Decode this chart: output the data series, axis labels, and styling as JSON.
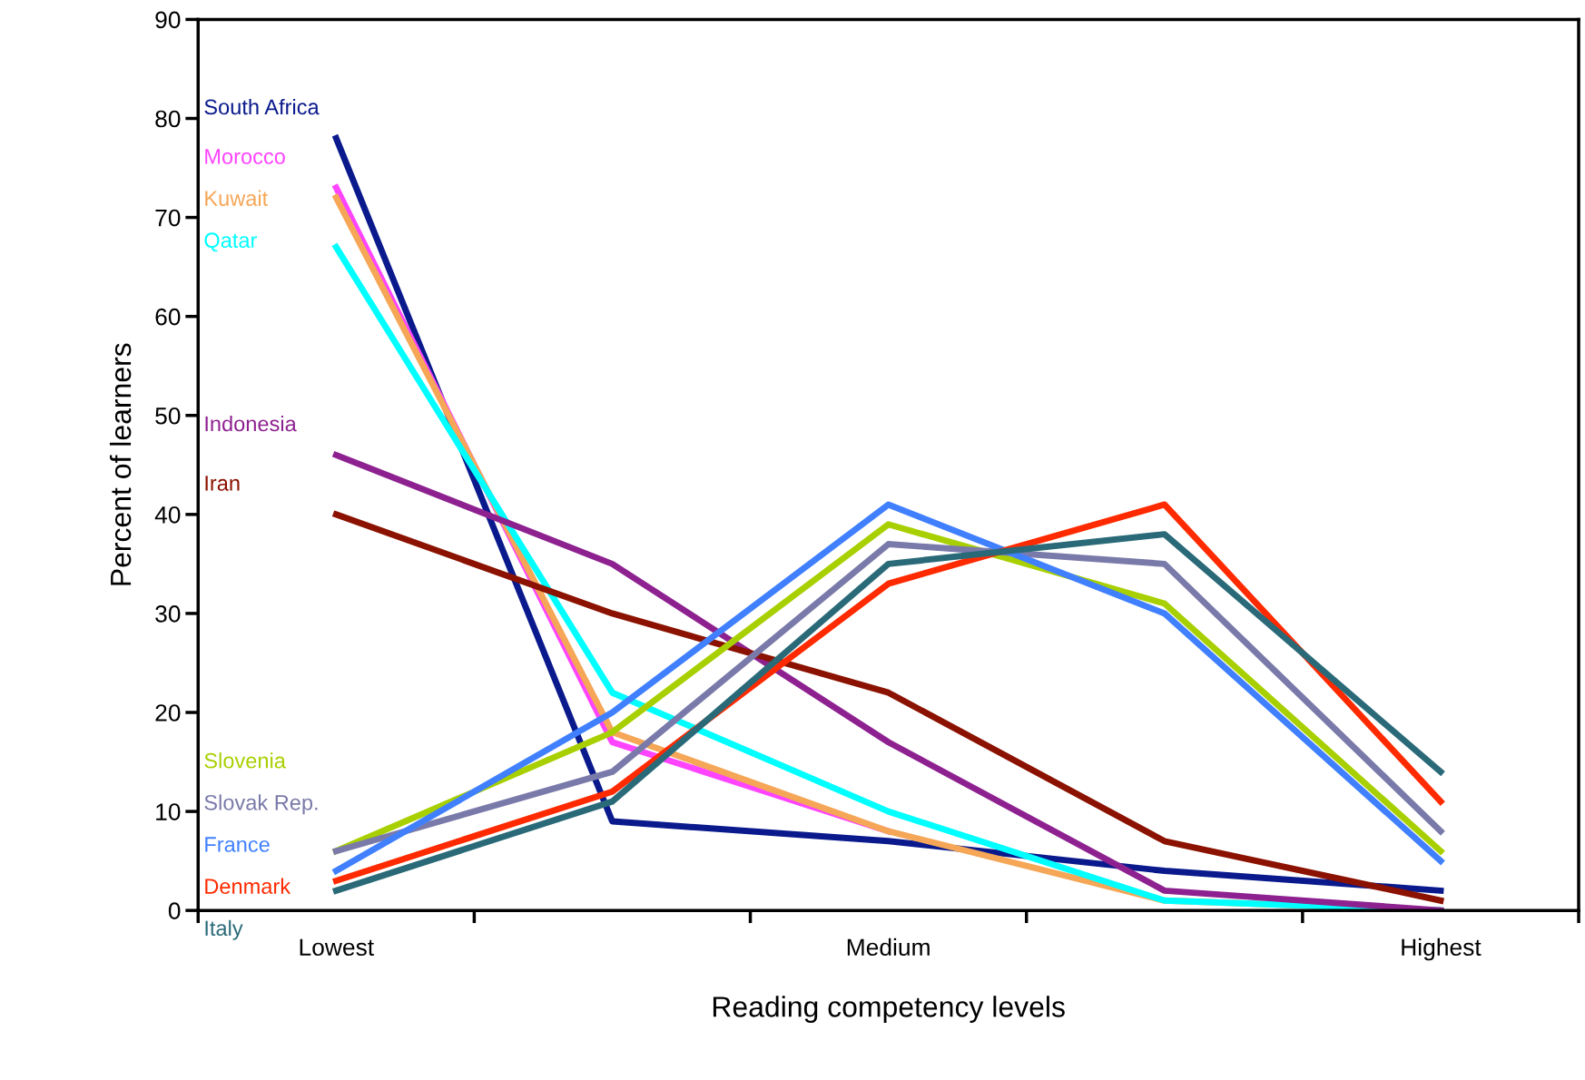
{
  "chart_data": {
    "type": "line",
    "xlabel": "Reading competency levels",
    "ylabel": "Percent of learners",
    "categories": [
      "Lowest",
      null,
      "Medium",
      null,
      "Highest"
    ],
    "ylim": [
      0,
      90
    ],
    "yticks": [
      0,
      10,
      20,
      30,
      40,
      50,
      60,
      70,
      80,
      90
    ],
    "grid": false,
    "legend": false,
    "marker": "none",
    "line_style": "solid",
    "series": [
      {
        "name": "South Africa",
        "color": "#0a1a8c",
        "values": [
          78,
          9,
          7,
          4,
          2
        ]
      },
      {
        "name": "Morocco",
        "color": "#ff44ff",
        "values": [
          73,
          17,
          8,
          null,
          null
        ]
      },
      {
        "name": "Kuwait",
        "color": "#f5a656",
        "values": [
          72,
          18,
          8,
          1,
          0
        ]
      },
      {
        "name": "Qatar",
        "color": "#00ffff",
        "values": [
          67,
          22,
          10,
          1,
          0
        ]
      },
      {
        "name": "Indonesia",
        "color": "#8e2190",
        "values": [
          46,
          35,
          17,
          2,
          0
        ]
      },
      {
        "name": "Iran",
        "color": "#8b1200",
        "values": [
          40,
          30,
          22,
          7,
          1
        ]
      },
      {
        "name": "Slovenia",
        "color": "#a8d000",
        "values": [
          6,
          18,
          39,
          31,
          6
        ]
      },
      {
        "name": "Slovak Rep.",
        "color": "#7a7aaa",
        "values": [
          6,
          14,
          37,
          35,
          8
        ]
      },
      {
        "name": "France",
        "color": "#4080ff",
        "values": [
          4,
          20,
          41,
          30,
          5
        ]
      },
      {
        "name": "Denmark",
        "color": "#ff2a00",
        "values": [
          3,
          12,
          33,
          41,
          11
        ]
      },
      {
        "name": "Italy",
        "color": "#2a6a78",
        "values": [
          2,
          11,
          35,
          38,
          14
        ]
      }
    ]
  }
}
